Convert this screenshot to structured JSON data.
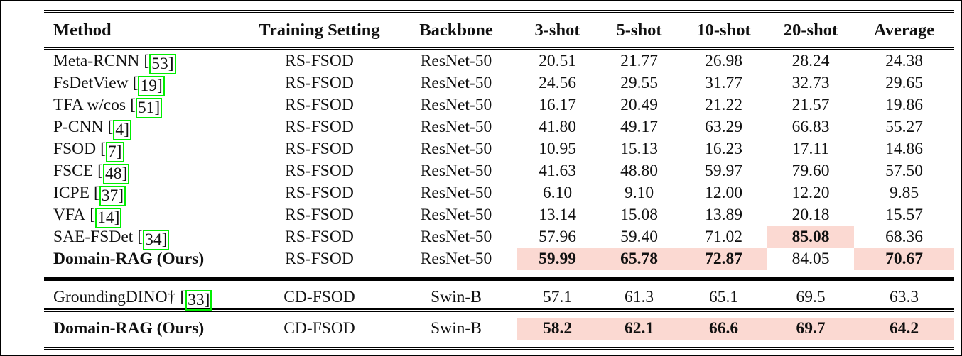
{
  "colors": {
    "highlight": "#fbd9d2",
    "citation_border": "#00ee00",
    "text": "#111111"
  },
  "citation": {
    "open": "[",
    "close": "]"
  },
  "header": {
    "columns": [
      {
        "label": "Method"
      },
      {
        "label": "Training Setting"
      },
      {
        "label": "Backbone"
      },
      {
        "label": "3-shot"
      },
      {
        "label": "5-shot"
      },
      {
        "label": "10-shot"
      },
      {
        "label": "20-shot"
      },
      {
        "label": "Average"
      }
    ]
  },
  "rows": [
    {
      "method": {
        "name": "Meta-RCNN",
        "cite": "53",
        "bold": false
      },
      "setting": "RS-FSOD",
      "backbone": "ResNet-50",
      "cells": [
        {
          "v": "20.51",
          "bold": false,
          "hl": false
        },
        {
          "v": "21.77",
          "bold": false,
          "hl": false
        },
        {
          "v": "26.98",
          "bold": false,
          "hl": false
        },
        {
          "v": "28.24",
          "bold": false,
          "hl": false
        },
        {
          "v": "24.38",
          "bold": false,
          "hl": false
        }
      ],
      "section_start": false,
      "section_end": false
    },
    {
      "method": {
        "name": "FsDetView",
        "cite": "19",
        "bold": false
      },
      "setting": "RS-FSOD",
      "backbone": "ResNet-50",
      "cells": [
        {
          "v": "24.56",
          "bold": false,
          "hl": false
        },
        {
          "v": "29.55",
          "bold": false,
          "hl": false
        },
        {
          "v": "31.77",
          "bold": false,
          "hl": false
        },
        {
          "v": "32.73",
          "bold": false,
          "hl": false
        },
        {
          "v": "29.65",
          "bold": false,
          "hl": false
        }
      ],
      "section_start": false,
      "section_end": false
    },
    {
      "method": {
        "name": "TFA w/cos",
        "cite": "51",
        "bold": false
      },
      "setting": "RS-FSOD",
      "backbone": "ResNet-50",
      "cells": [
        {
          "v": "16.17",
          "bold": false,
          "hl": false
        },
        {
          "v": "20.49",
          "bold": false,
          "hl": false
        },
        {
          "v": "21.22",
          "bold": false,
          "hl": false
        },
        {
          "v": "21.57",
          "bold": false,
          "hl": false
        },
        {
          "v": "19.86",
          "bold": false,
          "hl": false
        }
      ],
      "section_start": false,
      "section_end": false
    },
    {
      "method": {
        "name": "P-CNN",
        "cite": "4",
        "bold": false
      },
      "setting": "RS-FSOD",
      "backbone": "ResNet-50",
      "cells": [
        {
          "v": "41.80",
          "bold": false,
          "hl": false
        },
        {
          "v": "49.17",
          "bold": false,
          "hl": false
        },
        {
          "v": "63.29",
          "bold": false,
          "hl": false
        },
        {
          "v": "66.83",
          "bold": false,
          "hl": false
        },
        {
          "v": "55.27",
          "bold": false,
          "hl": false
        }
      ],
      "section_start": false,
      "section_end": false
    },
    {
      "method": {
        "name": "FSOD",
        "cite": "7",
        "bold": false
      },
      "setting": "RS-FSOD",
      "backbone": "ResNet-50",
      "cells": [
        {
          "v": "10.95",
          "bold": false,
          "hl": false
        },
        {
          "v": "15.13",
          "bold": false,
          "hl": false
        },
        {
          "v": "16.23",
          "bold": false,
          "hl": false
        },
        {
          "v": "17.11",
          "bold": false,
          "hl": false
        },
        {
          "v": "14.86",
          "bold": false,
          "hl": false
        }
      ],
      "section_start": false,
      "section_end": false
    },
    {
      "method": {
        "name": "FSCE",
        "cite": "48",
        "bold": false
      },
      "setting": "RS-FSOD",
      "backbone": "ResNet-50",
      "cells": [
        {
          "v": "41.63",
          "bold": false,
          "hl": false
        },
        {
          "v": "48.80",
          "bold": false,
          "hl": false
        },
        {
          "v": "59.97",
          "bold": false,
          "hl": false
        },
        {
          "v": "79.60",
          "bold": false,
          "hl": false
        },
        {
          "v": "57.50",
          "bold": false,
          "hl": false
        }
      ],
      "section_start": false,
      "section_end": false
    },
    {
      "method": {
        "name": "ICPE",
        "cite": "37",
        "bold": false
      },
      "setting": "RS-FSOD",
      "backbone": "ResNet-50",
      "cells": [
        {
          "v": "6.10",
          "bold": false,
          "hl": false
        },
        {
          "v": "9.10",
          "bold": false,
          "hl": false
        },
        {
          "v": "12.00",
          "bold": false,
          "hl": false
        },
        {
          "v": "12.20",
          "bold": false,
          "hl": false
        },
        {
          "v": "9.85",
          "bold": false,
          "hl": false
        }
      ],
      "section_start": false,
      "section_end": false
    },
    {
      "method": {
        "name": "VFA",
        "cite": "14",
        "bold": false
      },
      "setting": "RS-FSOD",
      "backbone": "ResNet-50",
      "cells": [
        {
          "v": "13.14",
          "bold": false,
          "hl": false
        },
        {
          "v": "15.08",
          "bold": false,
          "hl": false
        },
        {
          "v": "13.89",
          "bold": false,
          "hl": false
        },
        {
          "v": "20.18",
          "bold": false,
          "hl": false
        },
        {
          "v": "15.57",
          "bold": false,
          "hl": false
        }
      ],
      "section_start": false,
      "section_end": false
    },
    {
      "method": {
        "name": "SAE-FSDet",
        "cite": "34",
        "bold": false
      },
      "setting": "RS-FSOD",
      "backbone": "ResNet-50",
      "cells": [
        {
          "v": "57.96",
          "bold": false,
          "hl": false
        },
        {
          "v": "59.40",
          "bold": false,
          "hl": false
        },
        {
          "v": "71.02",
          "bold": false,
          "hl": false
        },
        {
          "v": "85.08",
          "bold": true,
          "hl": true
        },
        {
          "v": "68.36",
          "bold": false,
          "hl": false
        }
      ],
      "section_start": false,
      "section_end": false
    },
    {
      "method": {
        "name": "Domain-RAG (Ours)",
        "cite": null,
        "bold": true
      },
      "setting": "RS-FSOD",
      "backbone": "ResNet-50",
      "cells": [
        {
          "v": "59.99",
          "bold": true,
          "hl": true
        },
        {
          "v": "65.78",
          "bold": true,
          "hl": true
        },
        {
          "v": "72.87",
          "bold": true,
          "hl": true
        },
        {
          "v": "84.05",
          "bold": false,
          "hl": false
        },
        {
          "v": "70.67",
          "bold": true,
          "hl": true
        }
      ],
      "section_start": false,
      "section_end": true
    },
    {
      "method": {
        "name": "GroundingDINO†",
        "cite": "33",
        "bold": false
      },
      "setting": "CD-FSOD",
      "backbone": "Swin-B",
      "cells": [
        {
          "v": "57.1",
          "bold": false,
          "hl": false
        },
        {
          "v": "61.3",
          "bold": false,
          "hl": false
        },
        {
          "v": "65.1",
          "bold": false,
          "hl": false
        },
        {
          "v": "69.5",
          "bold": false,
          "hl": false
        },
        {
          "v": "63.3",
          "bold": false,
          "hl": false
        }
      ],
      "section_start": true,
      "section_end": false
    },
    {
      "method": {
        "name": "Domain-RAG (Ours)",
        "cite": null,
        "bold": true
      },
      "setting": "CD-FSOD",
      "backbone": "Swin-B",
      "cells": [
        {
          "v": "58.2",
          "bold": true,
          "hl": true
        },
        {
          "v": "62.1",
          "bold": true,
          "hl": true
        },
        {
          "v": "66.6",
          "bold": true,
          "hl": true
        },
        {
          "v": "69.7",
          "bold": true,
          "hl": true
        },
        {
          "v": "64.2",
          "bold": true,
          "hl": true
        }
      ],
      "section_start": true,
      "section_end": true
    }
  ]
}
